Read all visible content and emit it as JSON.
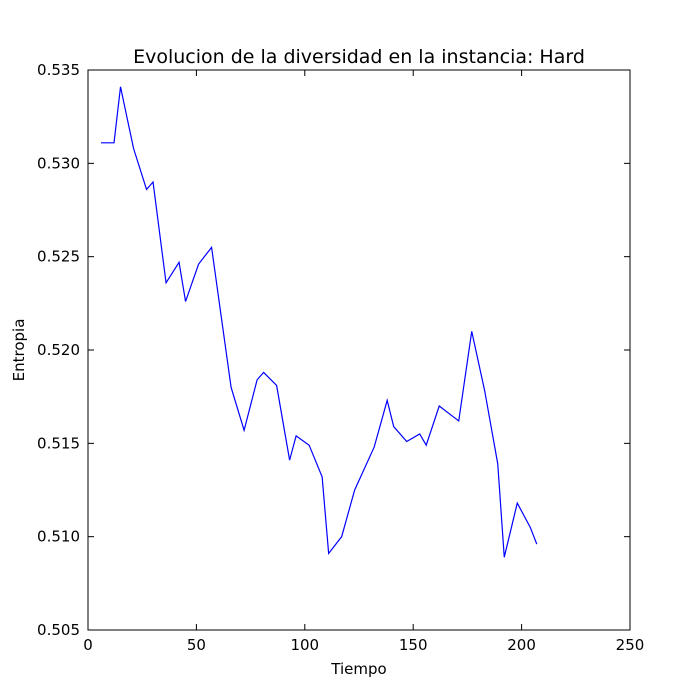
{
  "chart_data": {
    "type": "line",
    "title": "Evolucion de la diversidad en la instancia: Hard",
    "xlabel": "Tiempo",
    "ylabel": "Entropia",
    "xlim": [
      0,
      250
    ],
    "ylim": [
      0.505,
      0.535
    ],
    "xticks": [
      "0",
      "50",
      "100",
      "150",
      "200",
      "250"
    ],
    "yticks": [
      "0.505",
      "0.510",
      "0.515",
      "0.520",
      "0.525",
      "0.530",
      "0.535"
    ],
    "grid": false,
    "series": [
      {
        "color": "#0000ff",
        "x": [
          6,
          12,
          15,
          21,
          27,
          30,
          36,
          42,
          45,
          51,
          57,
          66,
          72,
          78,
          81,
          87,
          93,
          96,
          102,
          108,
          111,
          117,
          123,
          132,
          138,
          141,
          147,
          153,
          156,
          162,
          171,
          177,
          183,
          189,
          192,
          198,
          204,
          207
        ],
        "y": [
          0.5311,
          0.5311,
          0.5341,
          0.5308,
          0.5286,
          0.529,
          0.5236,
          0.5247,
          0.5226,
          0.5246,
          0.5255,
          0.518,
          0.5157,
          0.5184,
          0.5188,
          0.5181,
          0.5141,
          0.5154,
          0.5149,
          0.5132,
          0.5091,
          0.51,
          0.5125,
          0.5148,
          0.5173,
          0.5159,
          0.5151,
          0.5155,
          0.5149,
          0.517,
          0.5162,
          0.521,
          0.5178,
          0.5139,
          0.5089,
          0.5118,
          0.5105,
          0.5096
        ]
      }
    ]
  }
}
